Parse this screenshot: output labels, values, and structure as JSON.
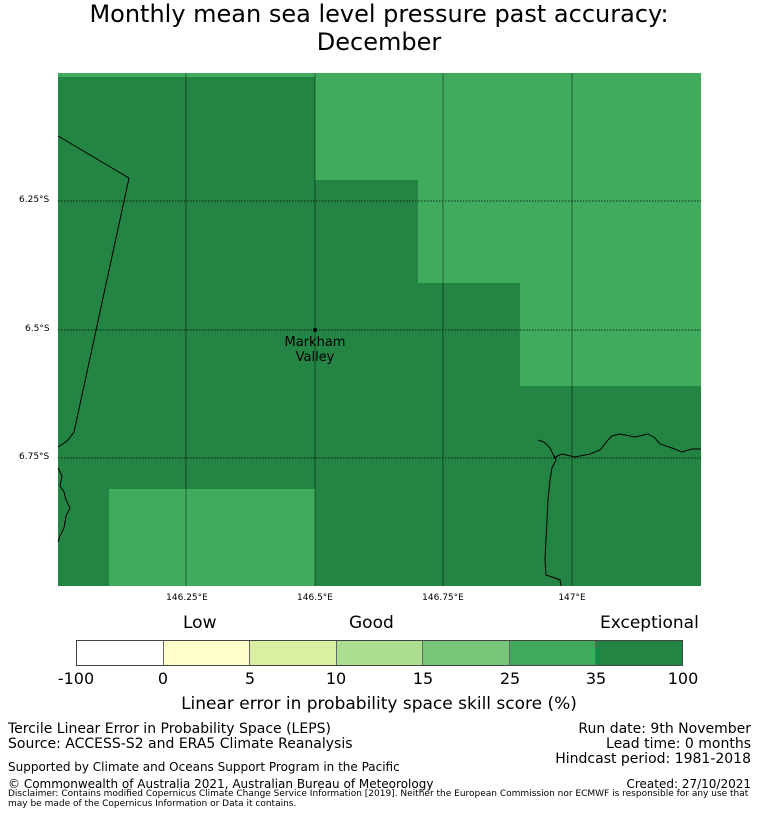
{
  "title": {
    "line1": "Monthly mean sea level pressure past accuracy:",
    "line2": "December"
  },
  "map": {
    "place_label": [
      "Markham",
      "Valley"
    ],
    "lat_labels": [
      "6.25°S",
      "6.5°S",
      "6.75°S"
    ],
    "lon_labels": [
      "146.25°E",
      "146.5°E",
      "146.75°E",
      "147°E"
    ],
    "colors": {
      "exceptional": "#238443",
      "good_high": "#41ab5d",
      "coastline": "#000000"
    }
  },
  "legend": {
    "categories": [
      "Low",
      "Good",
      "Exceptional"
    ],
    "colors": [
      "#ffffff",
      "#ffffcc",
      "#d9f0a3",
      "#addd8e",
      "#78c679",
      "#41ab5d",
      "#238443"
    ],
    "ticks": [
      "-100",
      "0",
      "5",
      "10",
      "15",
      "25",
      "35",
      "100"
    ],
    "title": "Linear error in probability space skill score (%)"
  },
  "footer": {
    "method": "Tercile Linear Error in Probability Space (LEPS)",
    "source": "Source: ACCESS-S2 and ERA5 Climate Reanalysis",
    "support": "Supported by Climate and Oceans Support Program in the Pacific",
    "copyright": "© Commonwealth of Australia 2021, Australian Bureau of Meteorology",
    "run_date": "Run date: 9th November",
    "lead_time": "Lead time: 0 months",
    "hindcast": "Hindcast period: 1981-2018",
    "created": "Created: 27/10/2021",
    "disclaimer": "Disclaimer: Contains modified Copernicus Climate Change Service Information [2019]. Neither the European Commission nor ECMWF is responsible for any use that may be made of the Copernicus Information or Data it contains."
  }
}
